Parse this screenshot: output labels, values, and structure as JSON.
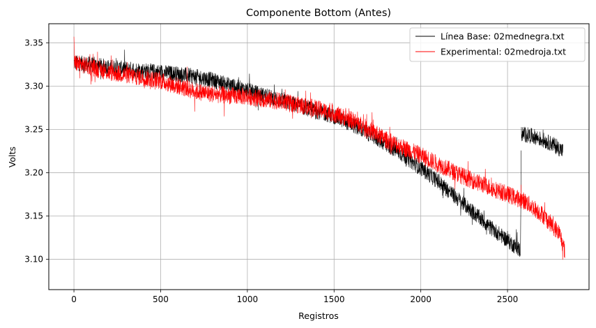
{
  "chart_data": {
    "type": "line",
    "title": "Componente Bottom (Antes)",
    "xlabel": "Registros",
    "ylabel": "Volts",
    "xlim": [
      -145,
      2970
    ],
    "ylim": [
      3.065,
      3.372
    ],
    "xticks": [
      0,
      500,
      1000,
      1500,
      2000,
      2500
    ],
    "xtick_labels": [
      "0",
      "500",
      "1000",
      "1500",
      "2000",
      "2500"
    ],
    "yticks": [
      3.1,
      3.15,
      3.2,
      3.25,
      3.3,
      3.35
    ],
    "ytick_labels": [
      "3.10",
      "3.15",
      "3.20",
      "3.25",
      "3.30",
      "3.35"
    ],
    "grid": true,
    "legend_position": "upper right",
    "noise_note": "series are dense noisy traces; trend points below, band half-width in volts",
    "series": [
      {
        "name": "Línea Base: 02mednegra.txt",
        "color": "#000000",
        "x_max": 2820,
        "band": 0.009,
        "trend": [
          [
            0,
            3.327
          ],
          [
            100,
            3.325
          ],
          [
            200,
            3.322
          ],
          [
            300,
            3.32
          ],
          [
            400,
            3.318
          ],
          [
            500,
            3.316
          ],
          [
            600,
            3.314
          ],
          [
            700,
            3.311
          ],
          [
            800,
            3.307
          ],
          [
            900,
            3.301
          ],
          [
            1000,
            3.295
          ],
          [
            1100,
            3.289
          ],
          [
            1200,
            3.283
          ],
          [
            1300,
            3.277
          ],
          [
            1400,
            3.271
          ],
          [
            1500,
            3.265
          ],
          [
            1600,
            3.256
          ],
          [
            1700,
            3.245
          ],
          [
            1800,
            3.233
          ],
          [
            1900,
            3.22
          ],
          [
            2000,
            3.205
          ],
          [
            2100,
            3.19
          ],
          [
            2200,
            3.172
          ],
          [
            2300,
            3.155
          ],
          [
            2400,
            3.137
          ],
          [
            2500,
            3.122
          ],
          [
            2575,
            3.11
          ],
          [
            2580,
            3.245
          ],
          [
            2650,
            3.242
          ],
          [
            2700,
            3.238
          ],
          [
            2760,
            3.233
          ],
          [
            2820,
            3.225
          ]
        ]
      },
      {
        "name": "Experimental: 02medroja.txt",
        "color": "#ff0000",
        "x_max": 2830,
        "band": 0.01,
        "trend": [
          [
            0,
            3.327
          ],
          [
            100,
            3.322
          ],
          [
            200,
            3.316
          ],
          [
            300,
            3.313
          ],
          [
            400,
            3.31
          ],
          [
            500,
            3.306
          ],
          [
            600,
            3.3
          ],
          [
            700,
            3.294
          ],
          [
            800,
            3.291
          ],
          [
            900,
            3.289
          ],
          [
            1000,
            3.288
          ],
          [
            1100,
            3.285
          ],
          [
            1200,
            3.282
          ],
          [
            1300,
            3.278
          ],
          [
            1400,
            3.274
          ],
          [
            1500,
            3.268
          ],
          [
            1600,
            3.261
          ],
          [
            1700,
            3.25
          ],
          [
            1800,
            3.238
          ],
          [
            1900,
            3.229
          ],
          [
            2000,
            3.22
          ],
          [
            2100,
            3.21
          ],
          [
            2200,
            3.2
          ],
          [
            2300,
            3.191
          ],
          [
            2400,
            3.183
          ],
          [
            2500,
            3.175
          ],
          [
            2600,
            3.167
          ],
          [
            2700,
            3.152
          ],
          [
            2800,
            3.13
          ],
          [
            2830,
            3.11
          ]
        ]
      }
    ]
  }
}
